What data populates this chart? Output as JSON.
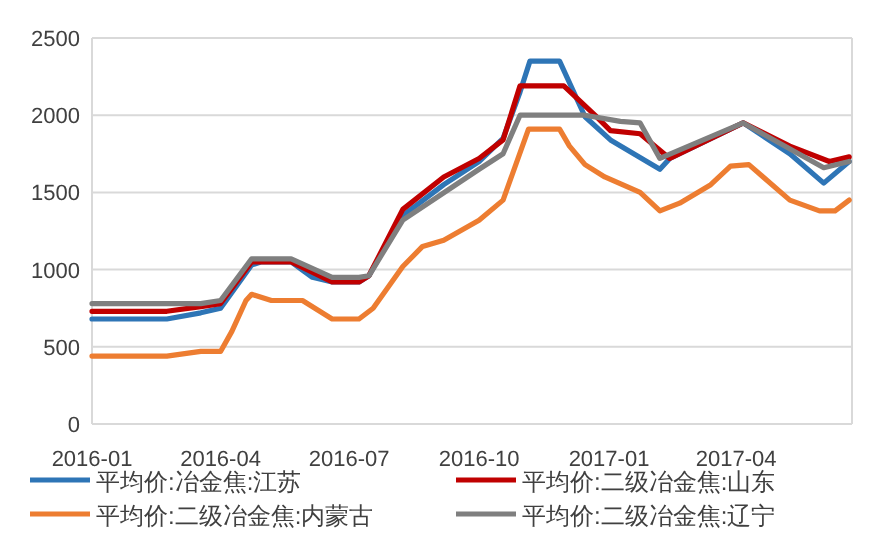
{
  "chart_data": {
    "type": "line",
    "legend": "bottom",
    "grid": "y",
    "marker": "none",
    "line_style": "solid",
    "xlim": [
      "2016-01-01",
      "2017-06-22"
    ],
    "ylim": [
      0,
      2500
    ],
    "yticks": [
      0,
      500,
      1000,
      1500,
      2000,
      2500
    ],
    "xticks": [
      {
        "value": "2016-01-01",
        "label": "2016-01"
      },
      {
        "value": "2016-04-01",
        "label": "2016-04"
      },
      {
        "value": "2016-07-01",
        "label": "2016-07"
      },
      {
        "value": "2016-10-01",
        "label": "2016-10"
      },
      {
        "value": "2017-01-01",
        "label": "2017-01"
      },
      {
        "value": "2017-04-01",
        "label": "2017-04"
      }
    ],
    "series": [
      {
        "name": "平均价:冶金焦:江苏",
        "color": "#2e75b6",
        "x": [
          "2016-01-01",
          "2016-02-23",
          "2016-03-18",
          "2016-04-01",
          "2016-04-23",
          "2016-04-30",
          "2016-05-21",
          "2016-06-05",
          "2016-06-19",
          "2016-07-08",
          "2016-07-15",
          "2016-08-08",
          "2016-09-06",
          "2016-10-01",
          "2016-10-18",
          "2016-10-30",
          "2016-11-06",
          "2016-11-27",
          "2016-12-15",
          "2017-01-02",
          "2017-02-06",
          "2017-02-13",
          "2017-04-06",
          "2017-05-09",
          "2017-06-02",
          "2017-06-20"
        ],
        "values": [
          680,
          680,
          720,
          750,
          1030,
          1050,
          1050,
          950,
          920,
          920,
          960,
          1350,
          1550,
          1700,
          1850,
          2150,
          2350,
          2350,
          1990,
          1840,
          1650,
          1720,
          1950,
          1750,
          1560,
          1700
        ]
      },
      {
        "name": "平均价:二级冶金焦:山东",
        "color": "#c00000",
        "x": [
          "2016-01-01",
          "2016-02-23",
          "2016-03-18",
          "2016-04-01",
          "2016-04-23",
          "2016-05-21",
          "2016-06-19",
          "2016-07-08",
          "2016-07-15",
          "2016-08-08",
          "2016-09-06",
          "2016-10-01",
          "2016-10-18",
          "2016-10-30",
          "2016-11-30",
          "2016-12-22",
          "2017-01-02",
          "2017-01-23",
          "2017-02-13",
          "2017-04-06",
          "2017-05-09",
          "2017-06-06",
          "2017-06-20"
        ],
        "values": [
          730,
          730,
          760,
          780,
          1050,
          1050,
          920,
          920,
          960,
          1390,
          1600,
          1720,
          1840,
          2190,
          2190,
          2000,
          1900,
          1880,
          1720,
          1950,
          1800,
          1700,
          1730
        ]
      },
      {
        "name": "平均价:二级冶金焦:内蒙古",
        "color": "#ed7d31",
        "x": [
          "2016-01-01",
          "2016-02-23",
          "2016-03-18",
          "2016-04-01",
          "2016-04-09",
          "2016-04-19",
          "2016-04-23",
          "2016-05-07",
          "2016-05-29",
          "2016-06-19",
          "2016-07-08",
          "2016-07-18",
          "2016-08-08",
          "2016-08-22",
          "2016-09-06",
          "2016-10-01",
          "2016-10-18",
          "2016-11-05",
          "2016-11-27",
          "2016-12-04",
          "2016-12-15",
          "2016-12-29",
          "2017-01-23",
          "2017-02-06",
          "2017-02-20",
          "2017-03-14",
          "2017-03-28",
          "2017-04-10",
          "2017-05-09",
          "2017-05-30",
          "2017-06-10",
          "2017-06-20"
        ],
        "values": [
          440,
          440,
          470,
          470,
          600,
          800,
          840,
          800,
          800,
          680,
          680,
          750,
          1020,
          1150,
          1190,
          1320,
          1450,
          1910,
          1910,
          1800,
          1680,
          1600,
          1500,
          1380,
          1430,
          1550,
          1670,
          1680,
          1450,
          1380,
          1380,
          1450
        ]
      },
      {
        "name": "平均价:二级冶金焦:辽宁",
        "color": "#7f7f7f",
        "x": [
          "2016-01-01",
          "2016-03-18",
          "2016-04-01",
          "2016-04-23",
          "2016-05-21",
          "2016-06-19",
          "2016-07-08",
          "2016-07-15",
          "2016-08-08",
          "2016-10-01",
          "2016-10-18",
          "2016-10-30",
          "2016-12-15",
          "2017-01-09",
          "2017-01-23",
          "2017-02-06",
          "2017-04-06",
          "2017-06-02",
          "2017-06-20"
        ],
        "values": [
          780,
          780,
          800,
          1070,
          1070,
          950,
          950,
          960,
          1320,
          1650,
          1750,
          2000,
          2000,
          1960,
          1950,
          1720,
          1950,
          1660,
          1700
        ]
      }
    ]
  }
}
